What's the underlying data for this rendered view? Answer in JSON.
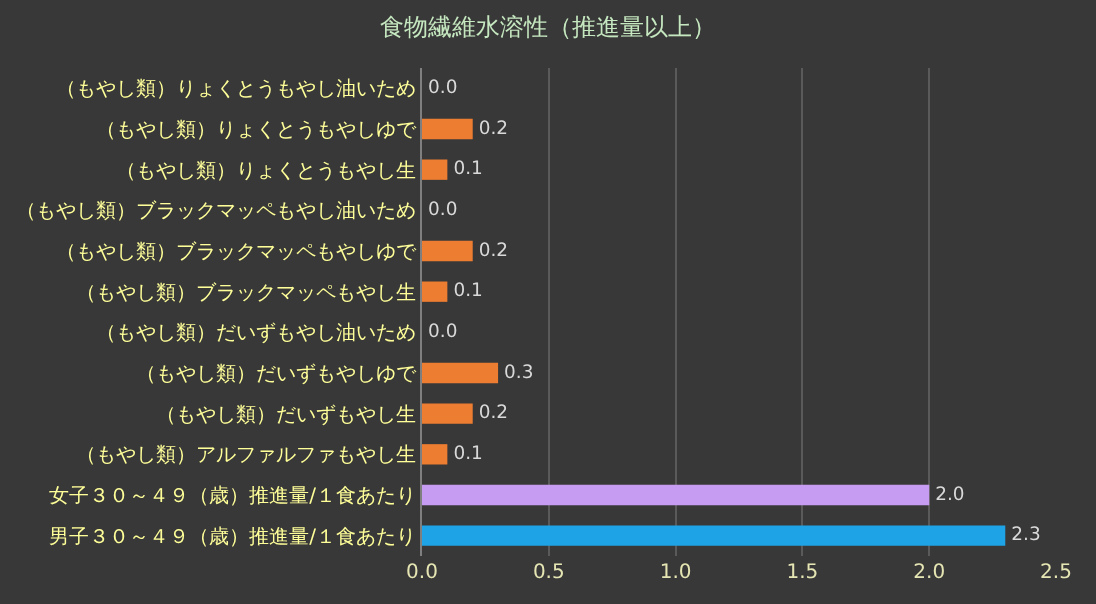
{
  "chart_data": {
    "type": "bar",
    "orientation": "horizontal",
    "title": "食物繊維水溶性（推進量以上）",
    "categories": [
      "（もやし類）りょくとうもやし油いため",
      "（もやし類）りょくとうもやしゆで",
      "（もやし類）りょくとうもやし生",
      "（もやし類）ブラックマッペもやし油いため",
      "（もやし類）ブラックマッペもやしゆで",
      "（もやし類）ブラックマッペもやし生",
      "（もやし類）だいずもやし油いため",
      "（もやし類）だいずもやしゆで",
      "（もやし類）だいずもやし生",
      "（もやし類）アルファルファもやし生",
      "女子３０～４９（歳）推進量/１食あたり",
      "男子３０～４９（歳）推進量/１食あたり"
    ],
    "values": [
      0.0,
      0.2,
      0.1,
      0.0,
      0.2,
      0.1,
      0.0,
      0.3,
      0.2,
      0.1,
      2.0,
      2.3
    ],
    "value_labels": [
      "0.0",
      "0.2",
      "0.1",
      "0.0",
      "0.2",
      "0.1",
      "0.0",
      "0.3",
      "0.2",
      "0.1",
      "2.0",
      "2.3"
    ],
    "colors": [
      "#ed7d31",
      "#ed7d31",
      "#ed7d31",
      "#ed7d31",
      "#ed7d31",
      "#ed7d31",
      "#ed7d31",
      "#ed7d31",
      "#ed7d31",
      "#ed7d31",
      "#c59cf2",
      "#1ea3e6"
    ],
    "xlim": [
      0,
      2.5
    ],
    "xticks": [
      {
        "value": 0,
        "label": "0.0"
      },
      {
        "value": 0.5,
        "label": "0.5"
      },
      {
        "value": 1,
        "label": "1.0"
      },
      {
        "value": 1.5,
        "label": "1.5"
      },
      {
        "value": 2,
        "label": "2.0"
      },
      {
        "value": 2.5,
        "label": "2.5"
      }
    ],
    "grid": "x",
    "legend": false
  }
}
